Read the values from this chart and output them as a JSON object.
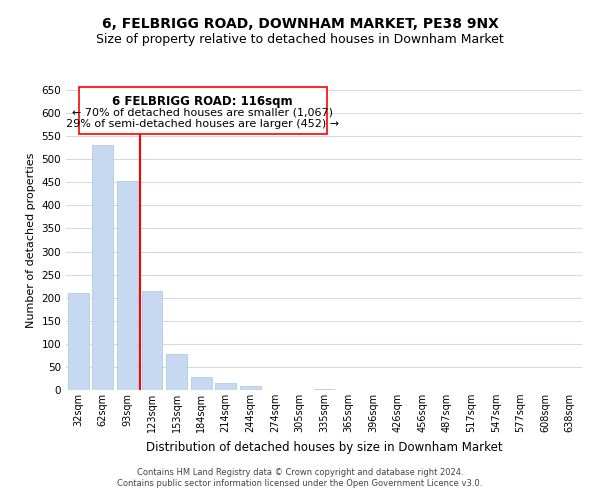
{
  "title": "6, FELBRIGG ROAD, DOWNHAM MARKET, PE38 9NX",
  "subtitle": "Size of property relative to detached houses in Downham Market",
  "xlabel": "Distribution of detached houses by size in Downham Market",
  "ylabel": "Number of detached properties",
  "bar_labels": [
    "32sqm",
    "62sqm",
    "93sqm",
    "123sqm",
    "153sqm",
    "184sqm",
    "214sqm",
    "244sqm",
    "274sqm",
    "305sqm",
    "335sqm",
    "365sqm",
    "396sqm",
    "426sqm",
    "456sqm",
    "487sqm",
    "517sqm",
    "547sqm",
    "577sqm",
    "608sqm",
    "638sqm"
  ],
  "bar_values": [
    210,
    530,
    452,
    215,
    78,
    28,
    15,
    8,
    0,
    0,
    3,
    0,
    0,
    0,
    0,
    1,
    0,
    0,
    0,
    1,
    0
  ],
  "bar_color": "#c6d9f0",
  "bar_edge_color": "#aac4e0",
  "grid_color": "#d0d8e8",
  "background_color": "#ffffff",
  "property_size": "116sqm",
  "pct_smaller": "70%",
  "n_smaller": "1,067",
  "pct_larger_semi": "29%",
  "n_larger_semi": "452",
  "ylim": [
    0,
    650
  ],
  "yticks": [
    0,
    50,
    100,
    150,
    200,
    250,
    300,
    350,
    400,
    450,
    500,
    550,
    600,
    650
  ],
  "footer_line1": "Contains HM Land Registry data © Crown copyright and database right 2024.",
  "footer_line2": "Contains public sector information licensed under the Open Government Licence v3.0.",
  "title_fontsize": 10,
  "subtitle_fontsize": 9,
  "annotation_fontsize": 8.5,
  "ylabel_fontsize": 8,
  "xlabel_fontsize": 8.5
}
